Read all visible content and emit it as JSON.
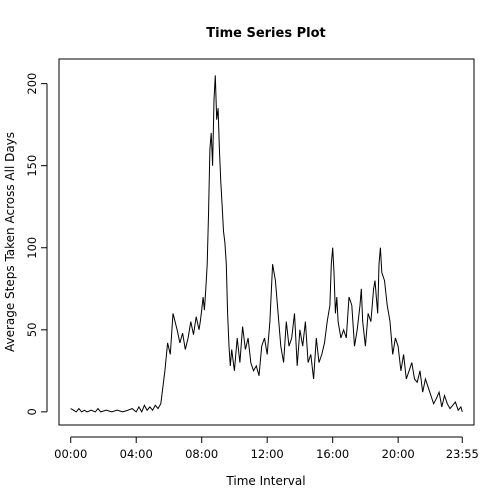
{
  "chart_data": {
    "type": "line",
    "title": "Time Series Plot",
    "xlabel": "Time Interval",
    "ylabel": "Average Steps Taken Across All Days",
    "x_unit": "minutes since midnight",
    "xlim": [
      -43,
      1478
    ],
    "ylim": [
      -8,
      215
    ],
    "x_ticks": [
      {
        "value": 0,
        "label": "00:00"
      },
      {
        "value": 240,
        "label": "04:00"
      },
      {
        "value": 480,
        "label": "08:00"
      },
      {
        "value": 720,
        "label": "12:00"
      },
      {
        "value": 960,
        "label": "16:00"
      },
      {
        "value": 1200,
        "label": "20:00"
      },
      {
        "value": 1435,
        "label": "23:55"
      }
    ],
    "y_ticks": [
      {
        "value": 0,
        "label": "0"
      },
      {
        "value": 50,
        "label": "50"
      },
      {
        "value": 100,
        "label": "100"
      },
      {
        "value": 150,
        "label": "150"
      },
      {
        "value": 200,
        "label": "200"
      }
    ],
    "grid": false,
    "series": [
      {
        "color": "#000000",
        "x": [
          0,
          10,
          20,
          30,
          40,
          50,
          60,
          75,
          90,
          100,
          110,
          130,
          150,
          170,
          190,
          210,
          225,
          240,
          250,
          260,
          270,
          280,
          290,
          300,
          310,
          320,
          330,
          345,
          355,
          365,
          375,
          390,
          400,
          410,
          420,
          430,
          440,
          450,
          460,
          470,
          475,
          480,
          485,
          490,
          495,
          500,
          505,
          510,
          515,
          520,
          525,
          530,
          535,
          540,
          545,
          550,
          555,
          560,
          565,
          570,
          575,
          580,
          585,
          590,
          600,
          610,
          620,
          630,
          640,
          650,
          660,
          670,
          680,
          690,
          700,
          710,
          720,
          730,
          740,
          750,
          760,
          770,
          780,
          790,
          800,
          810,
          820,
          830,
          840,
          850,
          860,
          870,
          880,
          890,
          900,
          910,
          920,
          930,
          940,
          950,
          955,
          960,
          965,
          970,
          975,
          980,
          990,
          1000,
          1010,
          1020,
          1030,
          1040,
          1050,
          1060,
          1065,
          1070,
          1080,
          1090,
          1100,
          1110,
          1115,
          1120,
          1125,
          1130,
          1135,
          1140,
          1150,
          1160,
          1170,
          1180,
          1190,
          1200,
          1210,
          1220,
          1230,
          1240,
          1250,
          1260,
          1270,
          1280,
          1290,
          1300,
          1310,
          1320,
          1330,
          1340,
          1350,
          1360,
          1370,
          1380,
          1390,
          1400,
          1410,
          1420,
          1430,
          1435
        ],
        "y": [
          2,
          1,
          0,
          2,
          0,
          1,
          0,
          1,
          0,
          2,
          0,
          1,
          0,
          1,
          0,
          1,
          2,
          0,
          3,
          0,
          4,
          1,
          3,
          1,
          4,
          2,
          5,
          25,
          42,
          35,
          60,
          50,
          42,
          48,
          38,
          45,
          55,
          47,
          58,
          50,
          55,
          62,
          70,
          62,
          75,
          90,
          120,
          160,
          170,
          150,
          190,
          205,
          178,
          185,
          160,
          140,
          125,
          110,
          103,
          90,
          60,
          40,
          28,
          38,
          25,
          45,
          30,
          52,
          38,
          45,
          30,
          25,
          28,
          22,
          40,
          45,
          35,
          55,
          90,
          80,
          60,
          40,
          30,
          55,
          40,
          45,
          60,
          28,
          50,
          40,
          55,
          30,
          35,
          20,
          45,
          30,
          35,
          42,
          55,
          65,
          90,
          100,
          85,
          60,
          70,
          55,
          45,
          50,
          45,
          70,
          65,
          40,
          50,
          65,
          75,
          55,
          40,
          60,
          55,
          75,
          80,
          70,
          60,
          90,
          100,
          85,
          80,
          65,
          55,
          35,
          45,
          40,
          25,
          35,
          20,
          25,
          30,
          20,
          18,
          25,
          12,
          20,
          15,
          10,
          5,
          8,
          12,
          3,
          10,
          5,
          2,
          4,
          6,
          1,
          3,
          0
        ]
      }
    ]
  }
}
